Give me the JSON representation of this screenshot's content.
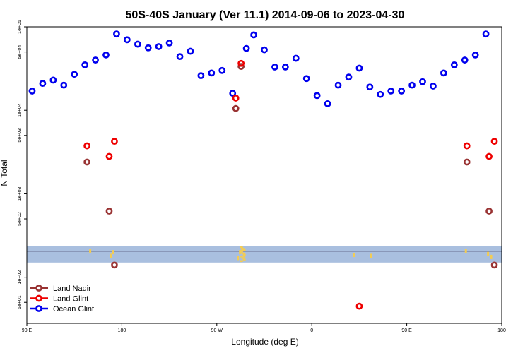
{
  "chart_data": {
    "type": "scatter",
    "title": "50S-40S January (Ver 11.1)   2014-09-06 to 2023-04-30",
    "xlabel": "Longitude (deg E)",
    "ylabel": "N Total",
    "x_axis": {
      "min": 90,
      "max": 450,
      "ticks": [
        {
          "value": 90,
          "label": "90 E"
        },
        {
          "value": 180,
          "label": "180"
        },
        {
          "value": 270,
          "label": "90 W"
        },
        {
          "value": 360,
          "label": "0"
        },
        {
          "value": 450,
          "label": "90 E"
        },
        {
          "value": 540,
          "label": "180"
        }
      ]
    },
    "x_range": [
      90,
      540
    ],
    "y_axis": {
      "scale": "log",
      "min": 28,
      "max": 100000,
      "ticks": [
        {
          "value": 100000,
          "label": "1e+05"
        },
        {
          "value": 50000,
          "label": "5e+04"
        },
        {
          "value": 10000,
          "label": "1e+04"
        },
        {
          "value": 5000,
          "label": "5e+03"
        },
        {
          "value": 1000,
          "label": "1e+03"
        },
        {
          "value": 500,
          "label": "5e+02"
        },
        {
          "value": 100,
          "label": "1e+02"
        },
        {
          "value": 50,
          "label": "5e+01"
        }
      ]
    },
    "band": {
      "low": 150,
      "high": 235,
      "line": 205,
      "color": "#a9bfdf",
      "line_color": "#555577"
    },
    "series": [
      {
        "name": "Ocean Glint",
        "color": "#0000ee",
        "points": [
          [
            95,
            17000
          ],
          [
            105,
            21000
          ],
          [
            115,
            23000
          ],
          [
            125,
            20000
          ],
          [
            135,
            27000
          ],
          [
            145,
            35000
          ],
          [
            155,
            40000
          ],
          [
            165,
            46000
          ],
          [
            175,
            82000
          ],
          [
            185,
            70000
          ],
          [
            195,
            62000
          ],
          [
            205,
            56000
          ],
          [
            215,
            58000
          ],
          [
            225,
            64000
          ],
          [
            235,
            44000
          ],
          [
            245,
            51000
          ],
          [
            255,
            26000
          ],
          [
            265,
            28000
          ],
          [
            275,
            30000
          ],
          [
            285,
            16000
          ],
          [
            298,
            55000
          ],
          [
            305,
            80000
          ],
          [
            315,
            53000
          ],
          [
            325,
            33000
          ],
          [
            335,
            33000
          ],
          [
            345,
            42000
          ],
          [
            355,
            24000
          ],
          [
            365,
            15000
          ],
          [
            375,
            12000
          ],
          [
            385,
            20000
          ],
          [
            395,
            25000
          ],
          [
            405,
            32000
          ],
          [
            415,
            19000
          ],
          [
            425,
            15500
          ],
          [
            435,
            17000
          ],
          [
            445,
            17000
          ],
          [
            455,
            20000
          ],
          [
            465,
            22000
          ],
          [
            475,
            19500
          ],
          [
            485,
            28000
          ],
          [
            495,
            35000
          ],
          [
            505,
            40000
          ],
          [
            515,
            46000
          ],
          [
            525,
            82000
          ]
        ]
      },
      {
        "name": "Land Glint",
        "color": "#ee0000",
        "points": [
          [
            147,
            3750
          ],
          [
            168,
            2800
          ],
          [
            173,
            4250
          ],
          [
            288,
            14000
          ],
          [
            293,
            36500
          ],
          [
            405,
            45
          ],
          [
            507,
            3750
          ],
          [
            528,
            2800
          ],
          [
            533,
            4250
          ]
        ]
      },
      {
        "name": "Land Nadir",
        "color": "#993333",
        "points": [
          [
            147,
            2400
          ],
          [
            168,
            620
          ],
          [
            173,
            140
          ],
          [
            288,
            10500
          ],
          [
            293,
            33500
          ],
          [
            507,
            2400
          ],
          [
            528,
            620
          ],
          [
            533,
            140
          ]
        ]
      }
    ],
    "legend": {
      "placement": "bottom-left"
    },
    "grid": false
  }
}
